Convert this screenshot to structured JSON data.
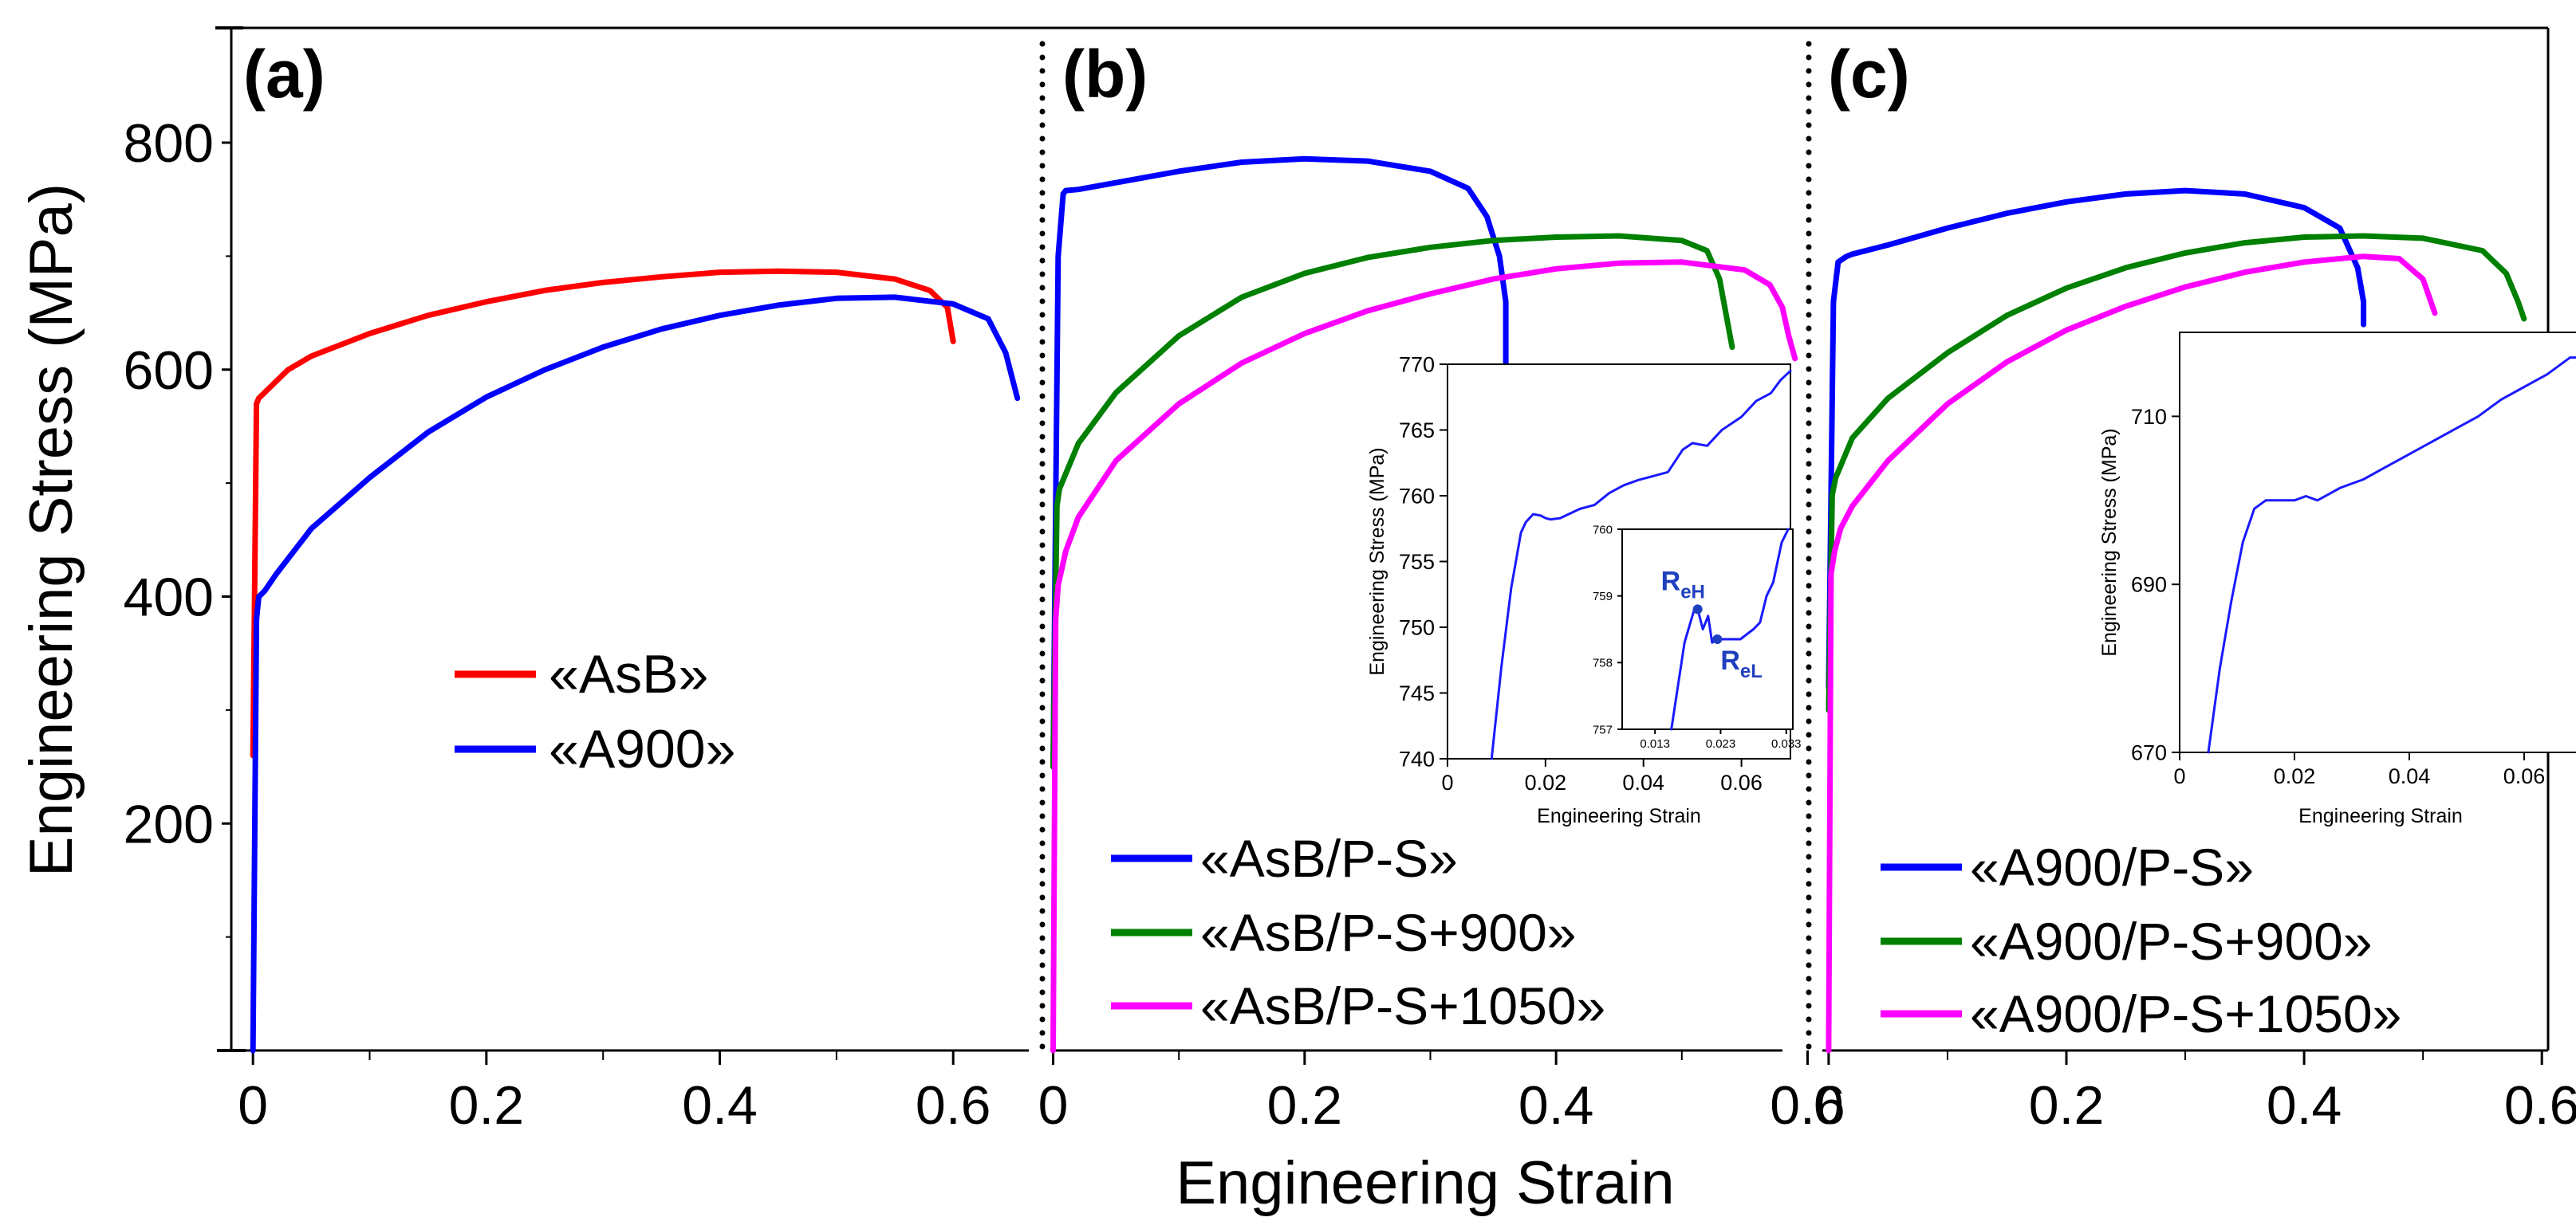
{
  "figure": {
    "ylabel": "Engineering Stress (MPa)",
    "xlabel": "Engineering Strain",
    "y_ticks": [
      "200",
      "400",
      "600",
      "800"
    ],
    "x_ticks": [
      "0",
      "0.2",
      "0.4",
      "0.6"
    ]
  },
  "colors": {
    "red": "#ff0000",
    "blue": "#0000ff",
    "green": "#008000",
    "magenta": "#ff00ff",
    "inset_blue": "#1a1aff",
    "annot": "#1f3fbf"
  },
  "chart_data": [
    {
      "type": "line",
      "panel": "(a)",
      "xlim": [
        -0.05,
        0.66
      ],
      "ylim": [
        0,
        900
      ],
      "series": [
        {
          "name": "«AsB»",
          "color": "#ff0000",
          "x": [
            0,
            0.003,
            0.005,
            0.01,
            0.03,
            0.05,
            0.1,
            0.15,
            0.2,
            0.25,
            0.3,
            0.35,
            0.4,
            0.45,
            0.5,
            0.55,
            0.58,
            0.595,
            0.6
          ],
          "y": [
            260,
            570,
            575,
            580,
            600,
            612,
            632,
            648,
            660,
            670,
            677,
            682,
            686,
            687,
            686,
            680,
            670,
            655,
            625
          ]
        },
        {
          "name": "«A900»",
          "color": "#0000ff",
          "x": [
            0,
            0.003,
            0.005,
            0.01,
            0.02,
            0.05,
            0.1,
            0.15,
            0.2,
            0.25,
            0.3,
            0.35,
            0.4,
            0.45,
            0.5,
            0.55,
            0.6,
            0.63,
            0.645,
            0.655
          ],
          "y": [
            0,
            380,
            400,
            405,
            420,
            460,
            505,
            545,
            576,
            600,
            620,
            636,
            648,
            657,
            663,
            664,
            658,
            645,
            615,
            575
          ]
        }
      ]
    },
    {
      "type": "line",
      "panel": "(b)",
      "xlim": [
        -0.02,
        0.62
      ],
      "ylim": [
        0,
        900
      ],
      "series": [
        {
          "name": "«AsB/P-S»",
          "color": "#0000ff",
          "x": [
            0,
            0.004,
            0.008,
            0.01,
            0.02,
            0.05,
            0.1,
            0.15,
            0.2,
            0.25,
            0.3,
            0.33,
            0.345,
            0.355,
            0.36,
            0.36
          ],
          "y": [
            250,
            700,
            755,
            758,
            759,
            765,
            775,
            783,
            786,
            784,
            775,
            760,
            735,
            700,
            660,
            600
          ]
        },
        {
          "name": "«AsB/P-S+900»",
          "color": "#008000",
          "x": [
            0,
            0.003,
            0.005,
            0.02,
            0.05,
            0.1,
            0.15,
            0.2,
            0.25,
            0.3,
            0.35,
            0.4,
            0.45,
            0.5,
            0.52,
            0.53,
            0.535,
            0.54
          ],
          "y": [
            250,
            480,
            495,
            535,
            580,
            630,
            664,
            685,
            699,
            708,
            714,
            717,
            718,
            714,
            705,
            680,
            650,
            620
          ]
        },
        {
          "name": "«AsB/P-S+1050»",
          "color": "#ff00ff",
          "x": [
            0,
            0.002,
            0.004,
            0.01,
            0.02,
            0.05,
            0.1,
            0.15,
            0.2,
            0.25,
            0.3,
            0.35,
            0.4,
            0.45,
            0.5,
            0.55,
            0.57,
            0.58,
            0.585,
            0.59
          ],
          "y": [
            0,
            380,
            410,
            440,
            470,
            520,
            570,
            606,
            632,
            652,
            667,
            680,
            689,
            694,
            695,
            688,
            675,
            655,
            630,
            610
          ]
        }
      ]
    },
    {
      "type": "line",
      "panel": "(c)",
      "xlim": [
        -0.01,
        0.62
      ],
      "ylim": [
        0,
        900
      ],
      "series": [
        {
          "name": "«A900/P-S»",
          "color": "#0000ff",
          "x": [
            0,
            0.004,
            0.008,
            0.015,
            0.02,
            0.05,
            0.1,
            0.15,
            0.2,
            0.25,
            0.3,
            0.35,
            0.4,
            0.43,
            0.445,
            0.45,
            0.45
          ],
          "y": [
            320,
            660,
            695,
            700,
            702,
            710,
            725,
            738,
            748,
            755,
            758,
            755,
            743,
            725,
            690,
            660,
            640
          ]
        },
        {
          "name": "«A900/P-S+900»",
          "color": "#008000",
          "x": [
            0,
            0.003,
            0.006,
            0.02,
            0.05,
            0.1,
            0.15,
            0.2,
            0.25,
            0.3,
            0.35,
            0.4,
            0.45,
            0.5,
            0.55,
            0.57,
            0.58,
            0.585
          ],
          "y": [
            300,
            490,
            505,
            540,
            575,
            615,
            648,
            672,
            690,
            703,
            712,
            717,
            718,
            716,
            705,
            685,
            660,
            645
          ]
        },
        {
          "name": "«A900/P-S+1050»",
          "color": "#ff00ff",
          "x": [
            0,
            0.002,
            0.005,
            0.01,
            0.02,
            0.05,
            0.1,
            0.15,
            0.2,
            0.25,
            0.3,
            0.35,
            0.4,
            0.45,
            0.48,
            0.5,
            0.51
          ],
          "y": [
            0,
            420,
            440,
            460,
            480,
            520,
            570,
            607,
            635,
            656,
            673,
            686,
            695,
            700,
            698,
            680,
            650
          ]
        }
      ]
    },
    {
      "type": "line",
      "panel": "(b) inset",
      "xlabel": "Engineering Strain",
      "ylabel": "Engineering Stress (MPa)",
      "xlim": [
        0,
        0.07
      ],
      "ylim": [
        740,
        770
      ],
      "x_ticks": [
        "0",
        "0.02",
        "0.04",
        "0.06"
      ],
      "y_ticks": [
        "740",
        "745",
        "750",
        "755",
        "760",
        "765",
        "770"
      ],
      "series": [
        {
          "name": "«AsB/P-S»",
          "color": "#1a1aff",
          "x": [
            0.009,
            0.011,
            0.013,
            0.015,
            0.016,
            0.0175,
            0.019,
            0.02,
            0.021,
            0.023,
            0.027,
            0.03,
            0.033,
            0.036,
            0.039,
            0.042,
            0.045,
            0.048,
            0.05,
            0.053,
            0.056,
            0.06,
            0.063,
            0.066,
            0.068,
            0.07
          ],
          "y": [
            740,
            747,
            753,
            757.2,
            758,
            758.6,
            758.5,
            758.3,
            758.2,
            758.3,
            759,
            759.3,
            760.2,
            760.8,
            761.2,
            761.5,
            761.8,
            763.5,
            764,
            763.8,
            765,
            766,
            767.2,
            767.8,
            768.8,
            769.5
          ]
        }
      ]
    },
    {
      "type": "line",
      "panel": "(b) inner inset",
      "xlim": [
        0.008,
        0.034
      ],
      "ylim": [
        757,
        760
      ],
      "x_ticks": [
        "0.013",
        "0.023",
        "0.033"
      ],
      "y_ticks": [
        "757",
        "758",
        "759",
        "760"
      ],
      "annotations": [
        {
          "base": "R",
          "sub": "eH",
          "x": 0.0195,
          "y": 758.8
        },
        {
          "base": "R",
          "sub": "eL",
          "x": 0.0225,
          "y": 758.35
        }
      ],
      "series": [
        {
          "name": "«AsB/P-S»",
          "color": "#1a1aff",
          "x": [
            0.0155,
            0.0175,
            0.019,
            0.0195,
            0.0203,
            0.0211,
            0.0217,
            0.0225,
            0.024,
            0.026,
            0.028,
            0.029,
            0.03,
            0.031,
            0.0323,
            0.0333
          ],
          "y": [
            757,
            758.3,
            758.8,
            758.8,
            758.5,
            758.7,
            758.3,
            758.35,
            758.35,
            758.35,
            758.5,
            758.6,
            759,
            759.2,
            759.8,
            760
          ]
        }
      ]
    },
    {
      "type": "line",
      "panel": "(c) inset",
      "xlabel": "Engineering Strain",
      "ylabel": "Engineering Stress (MPa)",
      "xlim": [
        0,
        0.07
      ],
      "ylim": [
        670,
        720
      ],
      "x_ticks": [
        "0",
        "0.02",
        "0.04",
        "0.06"
      ],
      "y_ticks": [
        "670",
        "690",
        "710"
      ],
      "series": [
        {
          "name": "«A900/P-S»",
          "color": "#1a1aff",
          "x": [
            0.005,
            0.007,
            0.009,
            0.011,
            0.013,
            0.015,
            0.02,
            0.022,
            0.024,
            0.028,
            0.032,
            0.036,
            0.04,
            0.044,
            0.048,
            0.052,
            0.056,
            0.06,
            0.064,
            0.068,
            0.07
          ],
          "y": [
            670,
            680,
            688,
            695,
            699,
            700,
            700,
            700.5,
            700,
            701.5,
            702.5,
            704,
            705.5,
            707,
            708.5,
            710,
            712,
            713.5,
            715,
            717,
            717
          ]
        }
      ]
    }
  ]
}
